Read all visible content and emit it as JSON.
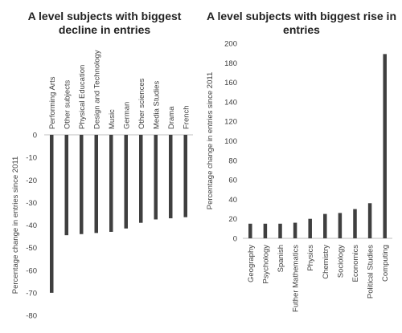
{
  "chart_data": [
    {
      "type": "bar",
      "title": "A level subjects with biggest decline in entries",
      "xlabel": "",
      "ylabel": "Percentage change in entries since 2011",
      "ylim": [
        -80,
        0
      ],
      "yticks": [
        0,
        -10,
        -20,
        -30,
        -40,
        -50,
        -60,
        -70,
        -80
      ],
      "grid": false,
      "category_label_position": "top",
      "bar_color": "#3f3f3f",
      "categories": [
        "Performing Arts",
        "Other subjects",
        "Physical Education",
        "Design and Technology",
        "Music",
        "German",
        "Other sciences",
        "Media Studies",
        "Drama",
        "French"
      ],
      "values": [
        -70,
        -44.5,
        -44,
        -43.5,
        -43,
        -41.5,
        -39,
        -37.5,
        -37,
        -36.5
      ]
    },
    {
      "type": "bar",
      "title": "A level subjects with biggest rise in entries",
      "xlabel": "",
      "ylabel": "Percentage change in entries since 2011",
      "ylim": [
        0,
        200
      ],
      "yticks": [
        0,
        20,
        40,
        60,
        80,
        100,
        120,
        140,
        160,
        180,
        200
      ],
      "grid": false,
      "category_label_position": "bottom",
      "bar_color": "#3f3f3f",
      "categories": [
        "Geography",
        "Psychology",
        "Spanish",
        "Futher Mathematics",
        "Physics",
        "Chemistry",
        "Sociology",
        "Economics",
        "Political Studies",
        "Computing"
      ],
      "values": [
        15,
        15,
        15,
        16,
        20,
        25,
        26,
        30,
        36,
        189
      ]
    }
  ]
}
